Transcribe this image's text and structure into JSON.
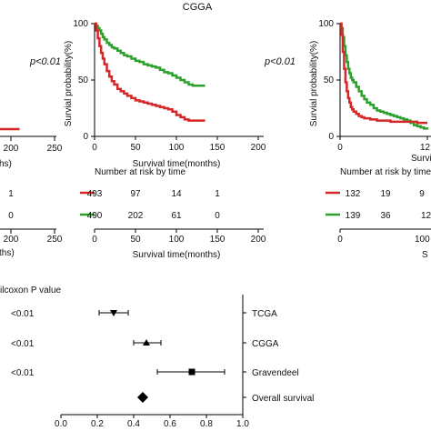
{
  "chart_data": [
    {
      "type": "line",
      "title": "",
      "xlabel": "",
      "ylabel": "",
      "p_value_text": "p<0.01",
      "xlim": [
        0,
        250
      ],
      "x_ticks": [
        "200",
        "250"
      ],
      "x_label_fragment": "hs)",
      "series": [
        {
          "color": "#d62728",
          "x": [
            140,
            210
          ],
          "y": [
            4,
            4
          ]
        }
      ],
      "risk_table": {
        "rows": [
          {
            "color": "#d62728",
            "values": [
              "1"
            ]
          },
          {
            "color": "#2ca02c",
            "values": [
              "0"
            ]
          }
        ],
        "x_ticks": [
          "200",
          "250"
        ],
        "x_label_fragment": "ths)"
      }
    },
    {
      "type": "line",
      "title": "CGGA",
      "xlabel": "Survival time(months)",
      "ylabel": "Survial probability(%)",
      "p_value_text": "p<0.01",
      "xlim": [
        0,
        200
      ],
      "ylim": [
        0,
        100
      ],
      "x_ticks": [
        "0",
        "50",
        "100",
        "150",
        "200"
      ],
      "y_ticks": [
        "0",
        "50",
        "100"
      ],
      "series": [
        {
          "color": "#2ca02c",
          "x": [
            0,
            2,
            4,
            6,
            8,
            10,
            12,
            15,
            18,
            21,
            24,
            28,
            32,
            36,
            40,
            45,
            50,
            55,
            60,
            65,
            70,
            75,
            80,
            85,
            90,
            95,
            100,
            105,
            110,
            115,
            120,
            125,
            130,
            135
          ],
          "y": [
            100,
            98,
            96,
            94,
            91,
            88,
            86,
            83,
            81,
            79,
            78,
            76,
            74,
            72,
            71,
            69,
            67,
            66,
            64,
            63,
            62,
            61,
            59,
            57,
            56,
            54,
            52,
            50,
            48,
            46,
            45,
            45,
            45,
            45
          ]
        },
        {
          "color": "#d62728",
          "x": [
            0,
            2,
            4,
            6,
            8,
            10,
            12,
            15,
            18,
            21,
            24,
            28,
            32,
            36,
            40,
            45,
            50,
            55,
            60,
            65,
            70,
            75,
            80,
            85,
            90,
            95,
            100,
            105,
            110,
            115,
            120,
            125,
            130,
            135
          ],
          "y": [
            100,
            94,
            87,
            80,
            74,
            69,
            64,
            58,
            53,
            49,
            46,
            42,
            40,
            38,
            36,
            34,
            32,
            31,
            30,
            29,
            28,
            27,
            26,
            25,
            24,
            22,
            19,
            17,
            15,
            14,
            14,
            14,
            14,
            14
          ]
        }
      ],
      "risk_table": {
        "title": "Number at risk by time",
        "xlabel": "Survival time(months)",
        "x_ticks": [
          "0",
          "50",
          "100",
          "150",
          "200"
        ],
        "rows": [
          {
            "color": "#d62728",
            "values": [
              "493",
              "97",
              "14",
              "1"
            ]
          },
          {
            "color": "#2ca02c",
            "values": [
              "490",
              "202",
              "61",
              "0"
            ]
          }
        ]
      }
    },
    {
      "type": "line",
      "title": "",
      "xlabel": "Survi",
      "ylabel": "Survial probability(%)",
      "xlim": [
        0,
        150
      ],
      "ylim": [
        0,
        100
      ],
      "x_ticks": [
        "0",
        "12"
      ],
      "y_ticks": [
        "0",
        "50",
        "100"
      ],
      "series": [
        {
          "color": "#2ca02c",
          "x": [
            0,
            2,
            4,
            6,
            8,
            10,
            12,
            14,
            16,
            18,
            20,
            24,
            28,
            32,
            36,
            40,
            45,
            50,
            55,
            60,
            65,
            70,
            75,
            80,
            85,
            90,
            95,
            100,
            105,
            110,
            115,
            120,
            125,
            130
          ],
          "y": [
            100,
            96,
            88,
            80,
            72,
            66,
            60,
            56,
            52,
            50,
            48,
            44,
            40,
            36,
            33,
            30,
            28,
            25,
            23,
            22,
            21,
            20,
            19,
            18,
            17,
            16,
            15,
            14,
            12,
            10,
            9,
            8,
            7,
            6
          ]
        },
        {
          "color": "#d62728",
          "x": [
            0,
            2,
            4,
            6,
            8,
            10,
            12,
            14,
            16,
            18,
            20,
            24,
            28,
            32,
            36,
            40,
            45,
            50,
            55,
            60,
            65,
            70,
            75,
            80,
            85,
            90,
            95,
            100,
            105,
            110,
            115,
            120,
            125,
            130
          ],
          "y": [
            100,
            90,
            75,
            60,
            48,
            40,
            34,
            30,
            26,
            24,
            22,
            20,
            18,
            17,
            16,
            16,
            15,
            15,
            14,
            14,
            14,
            14,
            13,
            13,
            13,
            13,
            13,
            13,
            13,
            13,
            12,
            12,
            12,
            12
          ]
        }
      ],
      "risk_table": {
        "title": "Number at risk by time",
        "xlabel": "S",
        "x_ticks": [
          "0",
          "100"
        ],
        "rows": [
          {
            "color": "#d62728",
            "values": [
              "132",
              "19",
              "9"
            ]
          },
          {
            "color": "#2ca02c",
            "values": [
              "139",
              "36",
              "12"
            ]
          }
        ]
      }
    },
    {
      "type": "scatter",
      "subtype": "forest",
      "title": "",
      "column_header": "ilcoxon P value",
      "xlim": [
        0,
        1
      ],
      "x_ticks": [
        "0.0",
        "0.2",
        "0.4",
        "0.6",
        "0.8",
        "1.0"
      ],
      "rows": [
        {
          "label": "TCGA",
          "p_value": "<0.01",
          "estimate": 0.29,
          "ci_low": 0.21,
          "ci_high": 0.37,
          "marker": "triangle-down"
        },
        {
          "label": "CGGA",
          "p_value": "<0.01",
          "estimate": 0.47,
          "ci_low": 0.4,
          "ci_high": 0.55,
          "marker": "triangle-up"
        },
        {
          "label": "Gravendeel",
          "p_value": "<0.01",
          "estimate": 0.72,
          "ci_low": 0.53,
          "ci_high": 0.9,
          "marker": "square"
        },
        {
          "label": "Overall survival",
          "p_value": "",
          "estimate": 0.45,
          "ci_low": null,
          "ci_high": null,
          "marker": "diamond"
        }
      ]
    }
  ]
}
